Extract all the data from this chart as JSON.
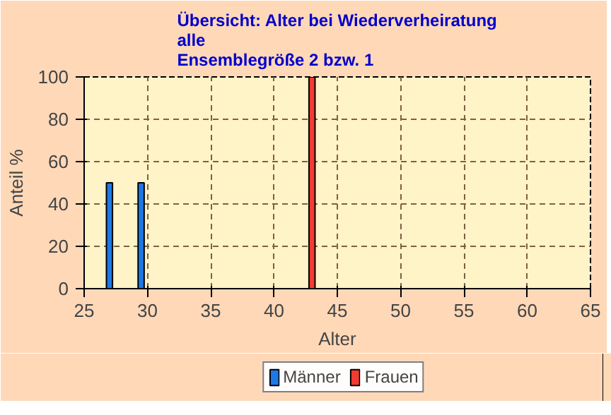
{
  "chart_data": {
    "type": "bar",
    "title": "Übersicht: Alter bei Wiederverheiratung\nalle\nEnsemblegröße 2 bzw. 1",
    "xlabel": "Alter",
    "ylabel": "Anteil %",
    "series": [
      {
        "name": "Männer",
        "color": "#1e78e6",
        "x": [
          27,
          29.5
        ],
        "values": [
          50,
          50
        ]
      },
      {
        "name": "Frauen",
        "color": "#f03c32",
        "x": [
          43
        ],
        "values": [
          100
        ]
      }
    ],
    "xlim": [
      25,
      65
    ],
    "xticks": [
      25,
      30,
      35,
      40,
      45,
      50,
      55,
      60,
      65
    ],
    "ylim": [
      0,
      100
    ],
    "yticks": [
      0,
      20,
      40,
      60,
      80,
      100
    ],
    "grid": true,
    "legend": "bottom"
  }
}
